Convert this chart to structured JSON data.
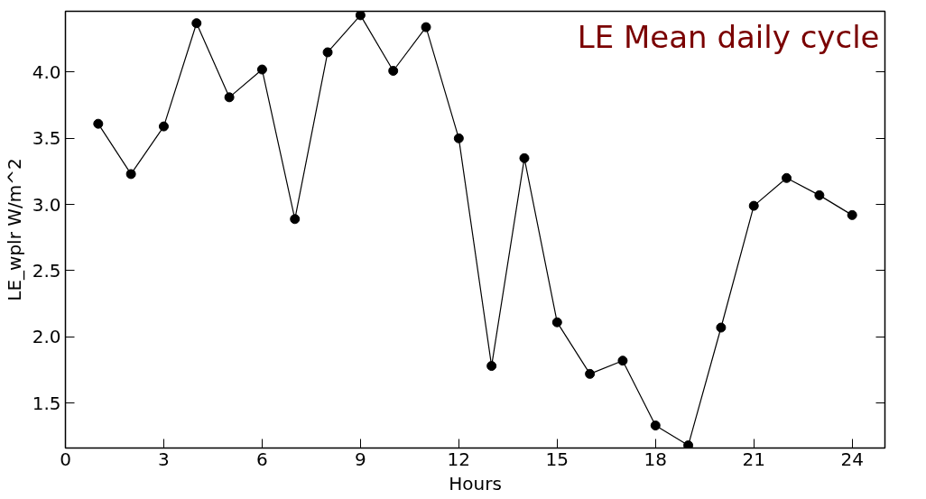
{
  "chart_data": {
    "type": "line",
    "title": "LE Mean daily cycle",
    "xlabel": "Hours",
    "ylabel": "LE_wplr W/m^2",
    "x": [
      1,
      2,
      3,
      4,
      5,
      6,
      7,
      8,
      9,
      10,
      11,
      12,
      13,
      14,
      15,
      16,
      17,
      18,
      19,
      20,
      21,
      22,
      23,
      24
    ],
    "series": [
      {
        "color": "#000000",
        "values": [
          3.61,
          3.23,
          3.59,
          4.37,
          3.81,
          4.02,
          2.89,
          4.15,
          4.43,
          4.01,
          4.34,
          3.5,
          1.78,
          3.35,
          2.11,
          1.72,
          1.82,
          1.33,
          1.18,
          2.07,
          2.99,
          3.2,
          3.07,
          2.92
        ]
      }
    ],
    "xlim": [
      0,
      25
    ],
    "xticks": [
      0,
      3,
      6,
      9,
      12,
      15,
      18,
      21,
      24
    ],
    "ylim": [
      1.16,
      4.46
    ],
    "yticks": [
      {
        "value": 1.5,
        "label": "1.5"
      },
      {
        "value": 2.0,
        "label": "2.0"
      },
      {
        "value": 2.5,
        "label": "2.5"
      },
      {
        "value": 3.0,
        "label": "3.0"
      },
      {
        "value": 3.5,
        "label": "3.5"
      },
      {
        "value": 4.0,
        "label": "4.0"
      }
    ],
    "grid": false,
    "marker": "circle",
    "line_style": "solid"
  }
}
